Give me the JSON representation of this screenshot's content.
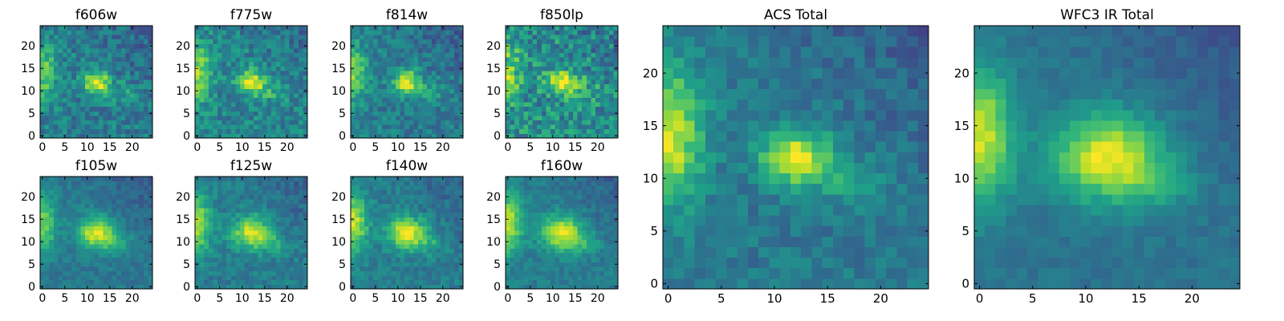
{
  "figure": {
    "colormap": "viridis",
    "viridis_stops": [
      "#440154",
      "#482878",
      "#3e4989",
      "#31688e",
      "#26828e",
      "#1f9e89",
      "#35b779",
      "#6ece58",
      "#b5de2b",
      "#fde725"
    ]
  },
  "chart_data": [
    {
      "type": "heatmap",
      "title": "f606w",
      "grid_size": 25,
      "xlim": [
        0,
        24
      ],
      "ylim": [
        0,
        24
      ],
      "x_ticks": [
        "0",
        "5",
        "10",
        "15",
        "20"
      ],
      "y_ticks": [
        "0",
        "5",
        "10",
        "15",
        "20"
      ],
      "source": {
        "center": [
          12,
          12
        ],
        "amplitude": 0.6,
        "sigma": [
          2.0,
          1.6
        ],
        "edge_amplitude": 0.35,
        "noise": 0.28,
        "background": 0.42
      }
    },
    {
      "type": "heatmap",
      "title": "f775w",
      "grid_size": 25,
      "xlim": [
        0,
        24
      ],
      "ylim": [
        0,
        24
      ],
      "x_ticks": [
        "0",
        "5",
        "10",
        "15",
        "20"
      ],
      "y_ticks": [
        "0",
        "5",
        "10",
        "15",
        "20"
      ],
      "source": {
        "center": [
          12,
          12
        ],
        "amplitude": 0.55,
        "sigma": [
          2.2,
          1.8
        ],
        "edge_amplitude": 0.4,
        "noise": 0.28,
        "background": 0.45
      }
    },
    {
      "type": "heatmap",
      "title": "f814w",
      "grid_size": 25,
      "xlim": [
        0,
        24
      ],
      "ylim": [
        0,
        24
      ],
      "x_ticks": [
        "0",
        "5",
        "10",
        "15",
        "20"
      ],
      "y_ticks": [
        "0",
        "5",
        "10",
        "15",
        "20"
      ],
      "source": {
        "center": [
          12,
          12
        ],
        "amplitude": 0.55,
        "sigma": [
          2.0,
          1.8
        ],
        "edge_amplitude": 0.4,
        "noise": 0.25,
        "background": 0.42
      }
    },
    {
      "type": "heatmap",
      "title": "f850lp",
      "grid_size": 25,
      "xlim": [
        0,
        24
      ],
      "ylim": [
        0,
        24
      ],
      "x_ticks": [
        "0",
        "5",
        "10",
        "15",
        "20"
      ],
      "y_ticks": [
        "0",
        "5",
        "10",
        "15",
        "20"
      ],
      "source": {
        "center": [
          12,
          12
        ],
        "amplitude": 0.45,
        "sigma": [
          2.2,
          1.8
        ],
        "edge_amplitude": 0.3,
        "noise": 0.4,
        "background": 0.5
      }
    },
    {
      "type": "heatmap",
      "title": "f105w",
      "grid_size": 25,
      "xlim": [
        0,
        24
      ],
      "ylim": [
        0,
        24
      ],
      "x_ticks": [
        "0",
        "5",
        "10",
        "15",
        "20"
      ],
      "y_ticks": [
        "0",
        "5",
        "10",
        "15",
        "20"
      ],
      "source": {
        "center": [
          12,
          12
        ],
        "amplitude": 0.55,
        "sigma": [
          3.0,
          2.4
        ],
        "edge_amplitude": 0.4,
        "noise": 0.15,
        "background": 0.4
      }
    },
    {
      "type": "heatmap",
      "title": "f125w",
      "grid_size": 25,
      "xlim": [
        0,
        24
      ],
      "ylim": [
        0,
        24
      ],
      "x_ticks": [
        "0",
        "5",
        "10",
        "15",
        "20"
      ],
      "y_ticks": [
        "0",
        "5",
        "10",
        "15",
        "20"
      ],
      "source": {
        "center": [
          12,
          12
        ],
        "amplitude": 0.5,
        "sigma": [
          3.0,
          2.5
        ],
        "edge_amplitude": 0.45,
        "noise": 0.18,
        "background": 0.42
      }
    },
    {
      "type": "heatmap",
      "title": "f140w",
      "grid_size": 25,
      "xlim": [
        0,
        24
      ],
      "ylim": [
        0,
        24
      ],
      "x_ticks": [
        "0",
        "5",
        "10",
        "15",
        "20"
      ],
      "y_ticks": [
        "0",
        "5",
        "10",
        "15",
        "20"
      ],
      "source": {
        "center": [
          12,
          12
        ],
        "amplitude": 0.55,
        "sigma": [
          3.0,
          2.4
        ],
        "edge_amplitude": 0.5,
        "noise": 0.18,
        "background": 0.42
      }
    },
    {
      "type": "heatmap",
      "title": "f160w",
      "grid_size": 25,
      "xlim": [
        0,
        24
      ],
      "ylim": [
        0,
        24
      ],
      "x_ticks": [
        "0",
        "5",
        "10",
        "15",
        "20"
      ],
      "y_ticks": [
        "0",
        "5",
        "10",
        "15",
        "20"
      ],
      "source": {
        "center": [
          12,
          12
        ],
        "amplitude": 0.55,
        "sigma": [
          3.2,
          2.6
        ],
        "edge_amplitude": 0.5,
        "noise": 0.15,
        "background": 0.42
      }
    },
    {
      "type": "heatmap",
      "title": "ACS Total",
      "grid_size": 25,
      "xlim": [
        0,
        24
      ],
      "ylim": [
        0,
        24
      ],
      "x_ticks": [
        "0",
        "5",
        "10",
        "15",
        "20"
      ],
      "y_ticks": [
        "0",
        "5",
        "10",
        "15",
        "20"
      ],
      "source": {
        "center": [
          12,
          12
        ],
        "amplitude": 0.6,
        "sigma": [
          2.2,
          1.8
        ],
        "edge_amplitude": 0.55,
        "noise": 0.18,
        "background": 0.4
      }
    },
    {
      "type": "heatmap",
      "title": "WFC3 IR Total",
      "grid_size": 25,
      "xlim": [
        0,
        24
      ],
      "ylim": [
        0,
        24
      ],
      "x_ticks": [
        "0",
        "5",
        "10",
        "15",
        "20"
      ],
      "y_ticks": [
        "0",
        "5",
        "10",
        "15",
        "20"
      ],
      "source": {
        "center": [
          12,
          12
        ],
        "amplitude": 0.6,
        "sigma": [
          3.5,
          2.8
        ],
        "edge_amplitude": 0.55,
        "noise": 0.1,
        "background": 0.38
      }
    }
  ]
}
